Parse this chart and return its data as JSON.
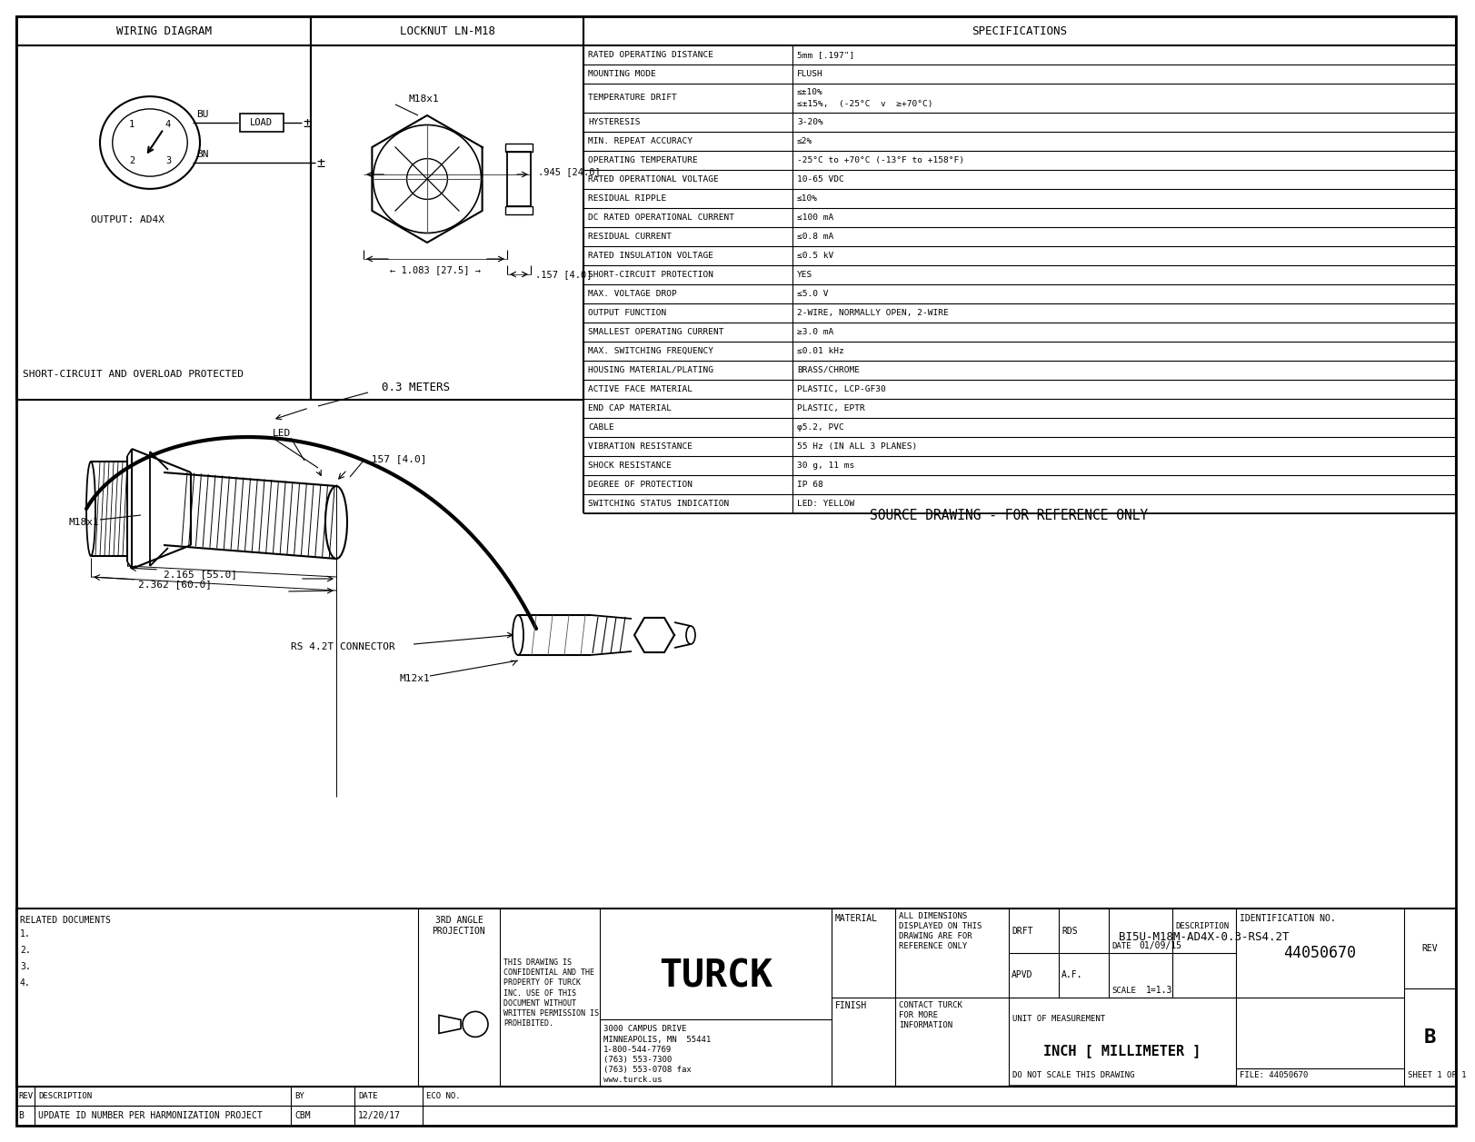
{
  "bg_color": "#ffffff",
  "line_color": "#000000",
  "specs_title": "SPECIFICATIONS",
  "wiring_title": "WIRING DIAGRAM",
  "locknut_title": "LOCKNUT LN-M18",
  "specs": [
    [
      "RATED OPERATING DISTANCE",
      "5mm [.197\"]"
    ],
    [
      "MOUNTING MODE",
      "FLUSH"
    ],
    [
      "TEMPERATURE DRIFT",
      "≤±10%\n≤±15%,  (-25°C  v  ≥+70°C)"
    ],
    [
      "HYSTERESIS",
      "3-20%"
    ],
    [
      "MIN. REPEAT ACCURACY",
      "≤2%"
    ],
    [
      "OPERATING TEMPERATURE",
      "-25°C to +70°C (-13°F to +158°F)"
    ],
    [
      "RATED OPERATIONAL VOLTAGE",
      "10-65 VDC"
    ],
    [
      "RESIDUAL RIPPLE",
      "≤10%"
    ],
    [
      "DC RATED OPERATIONAL CURRENT",
      "≤100 mA"
    ],
    [
      "RESIDUAL CURRENT",
      "≤0.8 mA"
    ],
    [
      "RATED INSULATION VOLTAGE",
      "≤0.5 kV"
    ],
    [
      "SHORT-CIRCUIT PROTECTION",
      "YES"
    ],
    [
      "MAX. VOLTAGE DROP",
      "≤5.0 V"
    ],
    [
      "OUTPUT FUNCTION",
      "2-WIRE, NORMALLY OPEN, 2-WIRE"
    ],
    [
      "SMALLEST OPERATING CURRENT",
      "≥3.0 mA"
    ],
    [
      "MAX. SWITCHING FREQUENCY",
      "≤0.01 kHz"
    ],
    [
      "HOUSING MATERIAL/PLATING",
      "BRASS/CHROME"
    ],
    [
      "ACTIVE FACE MATERIAL",
      "PLASTIC, LCP-GF30"
    ],
    [
      "END CAP MATERIAL",
      "PLASTIC, EPTR"
    ],
    [
      "CABLE",
      "φ5.2, PVC"
    ],
    [
      "VIBRATION RESISTANCE",
      "55 Hz (IN ALL 3 PLANES)"
    ],
    [
      "SHOCK RESISTANCE",
      "30 g, 11 ms"
    ],
    [
      "DEGREE OF PROTECTION",
      "IP 68"
    ],
    [
      "SWITCHING STATUS INDICATION",
      "LED: YELLOW"
    ]
  ],
  "source_drawing_text": "SOURCE DRAWING - FOR REFERENCE ONLY",
  "footer": {
    "related_docs_label": "RELATED DOCUMENTS",
    "related_docs": [
      "1.",
      "2.",
      "3.",
      "4."
    ],
    "confidential_text": "THIS DRAWING IS\nCONFIDENTIAL AND THE\nPROPERTY OF TURCK\nINC. USE OF THIS\nDOCUMENT WITHOUT\nWRITTEN PERMISSION IS\nPROHIBITED.",
    "company_address": "3000 CAMPUS DRIVE\nMINNEAPOLIS, MN  55441\n1-800-544-7769\n(763) 553-7300\n(763) 553-0708 fax\nwww.turck.us",
    "material_label": "MATERIAL",
    "drft_label": "DRFT",
    "drft_value": "RDS",
    "date_label": "DATE",
    "date_value": "01/09/15",
    "description_label": "DESCRIPTION",
    "description_value": "BI5U-M18M-AD4X-0.3-RS4.2T",
    "apvd_label": "APVD",
    "apvd_value": "A.F.",
    "scale_label": "SCALE",
    "scale_value": "1=1.3",
    "all_dimensions_text": "ALL DIMENSIONS\nDISPLAYED ON THIS\nDRAWING ARE FOR\nREFERENCE ONLY",
    "finish_label": "FINISH",
    "contact_text": "CONTACT TURCK\nFOR MORE\nINFORMATION",
    "units_text": "INCH [ MILLIMETER ]",
    "id_no_label": "IDENTIFICATION NO.",
    "id_no_value": "44050670",
    "rev_label": "REV",
    "rev_value": "B",
    "do_not_scale": "DO NOT SCALE THIS DRAWING",
    "file_label": "FILE: 44050670",
    "sheet_label": "SHEET 1 OF 1",
    "rev_block_label": "B",
    "rev_desc": "UPDATE ID NUMBER PER HARMONIZATION PROJECT",
    "cbm": "CBM",
    "rev_date": "12/20/17",
    "rev_col": "REV",
    "desc_col": "DESCRIPTION",
    "by_col": "BY",
    "date_col": "DATE",
    "eco_col": "ECO NO."
  }
}
